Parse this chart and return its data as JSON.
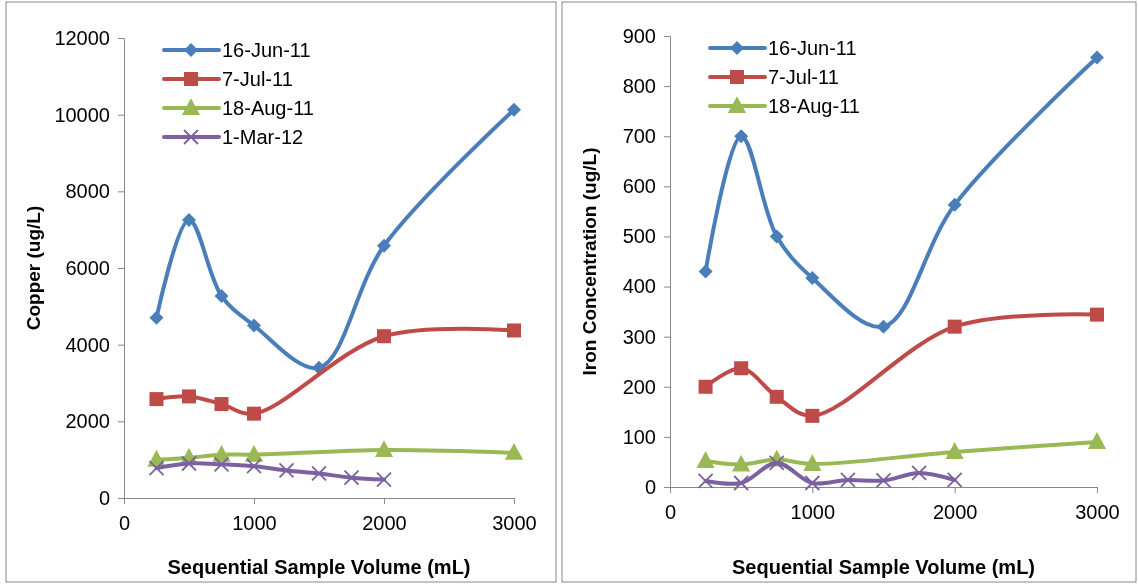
{
  "chart_data": [
    {
      "type": "line",
      "xlabel": "Sequential Sample Volume (mL)",
      "ylabel": "Copper (ug/L)",
      "xlim": [
        0,
        3000
      ],
      "xticks": [
        0,
        1000,
        2000,
        3000
      ],
      "ylim": [
        0,
        12000
      ],
      "yticks": [
        0,
        2000,
        4000,
        6000,
        8000,
        10000,
        12000
      ],
      "grid": false,
      "legend": "top left",
      "series": [
        {
          "name": "16-Jun-11",
          "color": "#4a7ebb",
          "marker": "diamond",
          "x": [
            250,
            500,
            750,
            1000,
            1500,
            2000,
            3000
          ],
          "values": [
            4700,
            7250,
            5270,
            4500,
            3400,
            6580,
            10130
          ]
        },
        {
          "name": "7-Jul-11",
          "color": "#be4b48",
          "marker": "square",
          "x": [
            250,
            500,
            750,
            1000,
            2000,
            3000
          ],
          "values": [
            2580,
            2650,
            2450,
            2200,
            4220,
            4370
          ]
        },
        {
          "name": "18-Aug-11",
          "color": "#98b954",
          "marker": "triangle",
          "x": [
            250,
            500,
            750,
            1000,
            2000,
            3000
          ],
          "values": [
            1000,
            1050,
            1130,
            1130,
            1250,
            1180
          ]
        },
        {
          "name": "1-Mar-12",
          "color": "#7d60a0",
          "marker": "cross",
          "x": [
            250,
            500,
            750,
            1000,
            1250,
            1500,
            1750,
            2000
          ],
          "values": [
            780,
            900,
            880,
            830,
            720,
            640,
            530,
            480
          ]
        }
      ]
    },
    {
      "type": "line",
      "xlabel": "Sequential Sample Volume (mL)",
      "ylabel": "Iron Concentration (ug/L)",
      "xlim": [
        0,
        3000
      ],
      "xticks": [
        0,
        1000,
        2000,
        3000
      ],
      "ylim": [
        0,
        900
      ],
      "yticks": [
        0,
        100,
        200,
        300,
        400,
        500,
        600,
        700,
        800,
        900
      ],
      "grid": false,
      "legend": "top left",
      "series": [
        {
          "name": "16-Jun-11",
          "color": "#4a7ebb",
          "marker": "diamond",
          "x": [
            250,
            500,
            750,
            1000,
            1500,
            2000,
            3000
          ],
          "values": [
            430,
            700,
            500,
            417,
            320,
            563,
            857
          ]
        },
        {
          "name": "7-Jul-11",
          "color": "#be4b48",
          "marker": "square",
          "x": [
            250,
            500,
            750,
            1000,
            2000,
            3000
          ],
          "values": [
            200,
            237,
            180,
            142,
            320,
            344
          ]
        },
        {
          "name": "18-Aug-11",
          "color": "#98b954",
          "marker": "triangle",
          "x": [
            250,
            500,
            750,
            1000,
            2000,
            3000
          ],
          "values": [
            52,
            45,
            55,
            46,
            70,
            90
          ]
        },
        {
          "color": "#7d60a0",
          "marker": "cross",
          "x": [
            250,
            500,
            750,
            1000,
            1250,
            1500,
            1750,
            2000
          ],
          "values": [
            12,
            8,
            48,
            8,
            14,
            13,
            28,
            14
          ]
        }
      ]
    }
  ]
}
